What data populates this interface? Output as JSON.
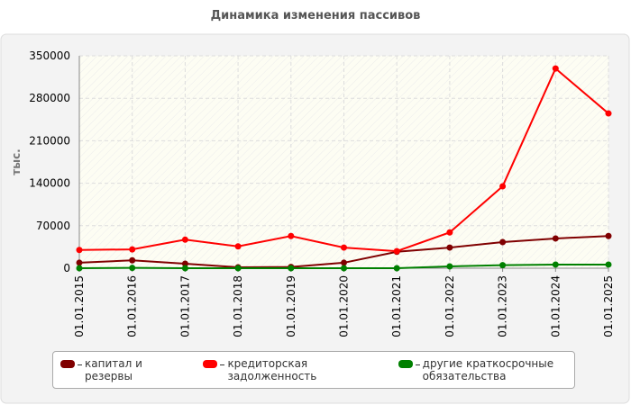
{
  "chart_data": {
    "type": "line",
    "title": "Динамика изменения пассивов",
    "y_label": "тыс.",
    "categories": [
      "01.01.2015",
      "01.01.2016",
      "01.01.2017",
      "01.01.2018",
      "01.01.2019",
      "01.01.2020",
      "01.01.2021",
      "01.01.2022",
      "01.01.2023",
      "01.01.2024",
      "01.01.2025"
    ],
    "series": [
      {
        "name": "капитал и резервы",
        "color": "#800000",
        "values": [
          9000,
          13000,
          7500,
          1500,
          2000,
          9000,
          27000,
          34000,
          43000,
          49000,
          53000
        ]
      },
      {
        "name": "кредиторская задолженность",
        "color": "#ff0000",
        "values": [
          30000,
          31000,
          47000,
          36000,
          53000,
          34000,
          28000,
          59000,
          135000,
          329000,
          255000
        ]
      },
      {
        "name": "другие краткосрочные обязательства",
        "color": "#008000",
        "values": [
          0,
          500,
          0,
          0,
          0,
          0,
          0,
          3000,
          5000,
          6000,
          6000
        ]
      }
    ],
    "ylim": [
      0,
      350000
    ],
    "yticks": [
      0,
      70000,
      140000,
      210000,
      280000,
      350000
    ],
    "grid": true
  }
}
